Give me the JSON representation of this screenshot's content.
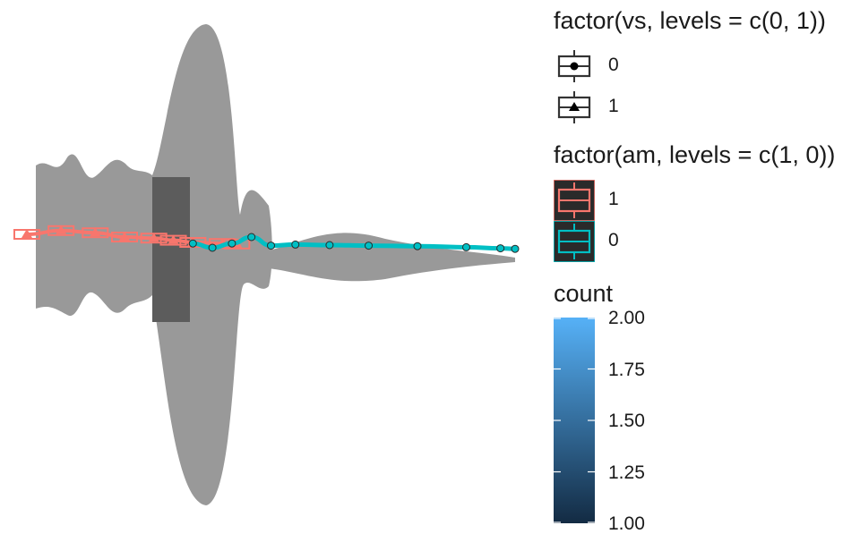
{
  "chart_data": {
    "type": "violin",
    "axes_visible": false,
    "grid": false,
    "legend_position": "right",
    "colors": {
      "am_1": "#F8766D",
      "am_0": "#00BFC4",
      "violin_fill": "#999999",
      "overlap_fill": "#5c5c5c",
      "gradient_low": "#132B43",
      "gradient_high": "#56B1F7"
    },
    "series": [
      {
        "name": "1",
        "group": "am",
        "color": "#F8766D",
        "x": [
          0,
          0.07,
          0.14,
          0.2,
          0.26,
          0.3,
          0.34,
          0.4,
          0.43
        ],
        "y": [
          0.55,
          0.62,
          0.58,
          0.5,
          0.48,
          0.44,
          0.4,
          0.38,
          0.37
        ]
      },
      {
        "name": "0",
        "group": "am",
        "color": "#00BFC4",
        "x": [
          0.34,
          0.38,
          0.42,
          0.46,
          0.5,
          0.55,
          0.62,
          0.7,
          0.8,
          0.9,
          0.97,
          1.0
        ],
        "y": [
          0.38,
          0.3,
          0.38,
          0.5,
          0.34,
          0.36,
          0.35,
          0.34,
          0.33,
          0.31,
          0.29,
          0.28
        ]
      }
    ]
  },
  "legends": {
    "vs": {
      "title": "factor(vs, levels = c(0, 1))",
      "items": [
        {
          "label": "0",
          "shape": "circle"
        },
        {
          "label": "1",
          "shape": "triangle"
        }
      ]
    },
    "am": {
      "title": "factor(am, levels = c(1, 0))",
      "items": [
        {
          "label": "1",
          "color": "#F8766D"
        },
        {
          "label": "0",
          "color": "#00BFC4"
        }
      ]
    },
    "count": {
      "title": "count",
      "ticks": [
        "2.00",
        "1.75",
        "1.50",
        "1.25",
        "1.00"
      ],
      "range": [
        1,
        2
      ]
    }
  }
}
